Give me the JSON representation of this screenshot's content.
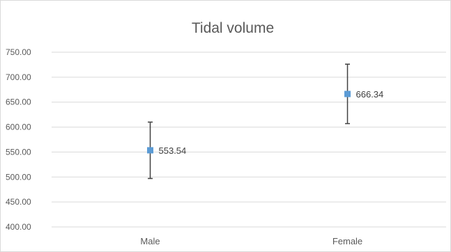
{
  "chart_data": {
    "type": "scatter",
    "title": "Tidal volume",
    "xlabel": "",
    "ylabel": "",
    "categories": [
      "Male",
      "Female"
    ],
    "series": [
      {
        "values": [
          553.54,
          666.34
        ],
        "data_labels": [
          "553.54",
          "666.34"
        ],
        "error_low": [
          497,
          607
        ],
        "error_high": [
          610,
          726
        ]
      }
    ],
    "ylim": [
      400,
      750
    ],
    "yticks": [
      400,
      450,
      500,
      550,
      600,
      650,
      700,
      750
    ],
    "ytick_labels": [
      "400.00",
      "450.00",
      "500.00",
      "550.00",
      "600.00",
      "650.00",
      "700.00",
      "750.00"
    ],
    "grid": "horizontal",
    "legend": "none",
    "colors": {
      "marker": "#5b9bd5",
      "error_bar": "#404040",
      "gridline": "#d9d9d9",
      "text": "#595959"
    }
  }
}
